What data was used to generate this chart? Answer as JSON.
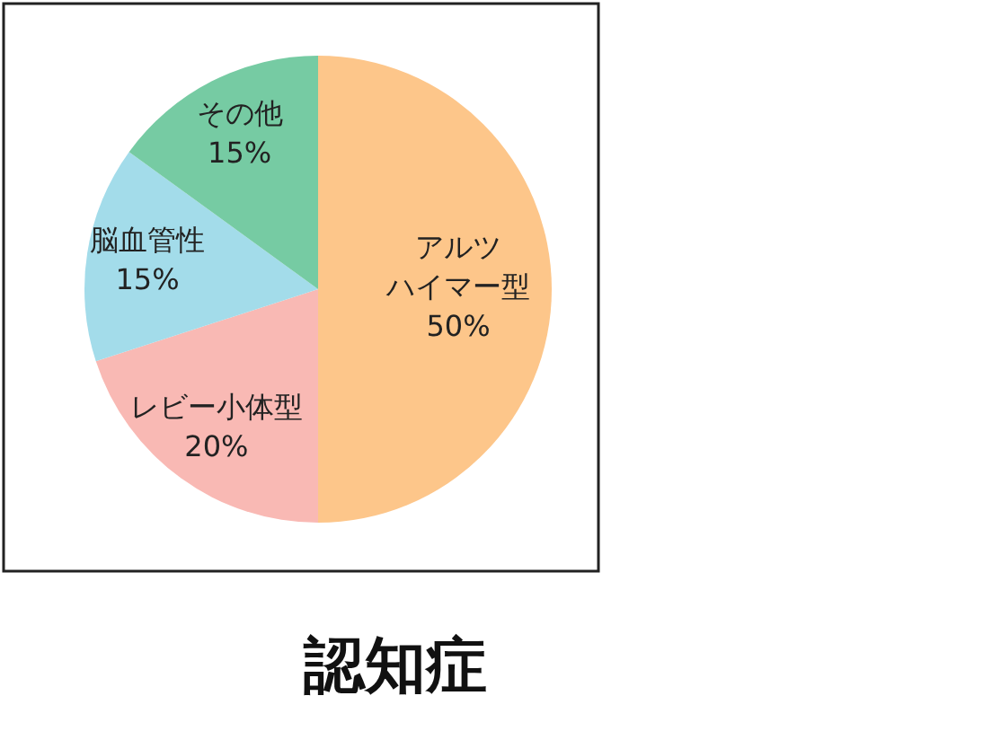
{
  "chart_data": {
    "type": "pie",
    "title": "認知症",
    "categories": [
      "アルツハイマー型",
      "レビー小体型",
      "脳血管性",
      "その他"
    ],
    "values": [
      50,
      20,
      15,
      15
    ],
    "colors": [
      "#fdc68a",
      "#f9b9b4",
      "#a3dcea",
      "#76cba3"
    ],
    "value_labels": [
      "50%",
      "20%",
      "15%",
      "15%"
    ]
  }
}
